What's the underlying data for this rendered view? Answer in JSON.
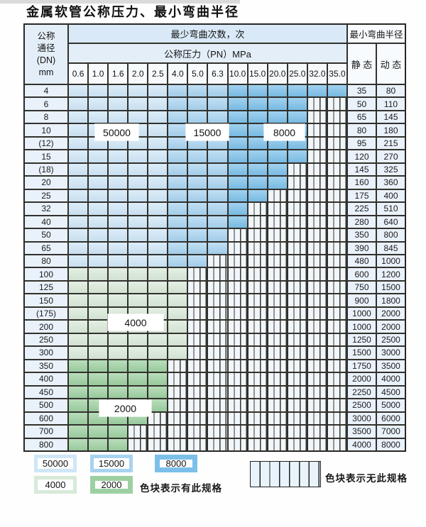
{
  "title": "金属软管公称压力、最小弯曲半径",
  "table": {
    "corner_header": [
      "公称",
      "通径",
      "(DN)",
      "mm"
    ],
    "cycles_header": "最少弯曲次数，次",
    "pressure_header": "公称压力（PN）MPa",
    "radius_header": "最小弯曲半径",
    "static_label": "静 态",
    "dynamic_label": "动 态",
    "pressure_columns": [
      "0.6",
      "1.0",
      "1.6",
      "2.0",
      "2.5",
      "4.0",
      "5.0",
      "6.3",
      "10.0",
      "15.0",
      "20.0",
      "25.0",
      "32.0",
      "35.0"
    ],
    "rows": [
      {
        "dn": "4",
        "spec_through_pn": "35.0",
        "band": "blue",
        "static": "35",
        "dynamic": "80"
      },
      {
        "dn": "6",
        "spec_through_pn": "25.0",
        "band": "blue",
        "static": "50",
        "dynamic": "110"
      },
      {
        "dn": "8",
        "spec_through_pn": "25.0",
        "band": "blue",
        "static": "65",
        "dynamic": "145"
      },
      {
        "dn": "10",
        "spec_through_pn": "25.0",
        "band": "blue",
        "static": "80",
        "dynamic": "180"
      },
      {
        "dn": "(12)",
        "spec_through_pn": "25.0",
        "band": "blue",
        "static": "95",
        "dynamic": "215"
      },
      {
        "dn": "15",
        "spec_through_pn": "25.0",
        "band": "blue",
        "static": "120",
        "dynamic": "270"
      },
      {
        "dn": "(18)",
        "spec_through_pn": "20.0",
        "band": "blue",
        "static": "145",
        "dynamic": "325"
      },
      {
        "dn": "20",
        "spec_through_pn": "20.0",
        "band": "blue",
        "static": "160",
        "dynamic": "360"
      },
      {
        "dn": "25",
        "spec_through_pn": "15.0",
        "band": "blue",
        "static": "175",
        "dynamic": "400"
      },
      {
        "dn": "32",
        "spec_through_pn": "10.0",
        "band": "blue",
        "static": "225",
        "dynamic": "510"
      },
      {
        "dn": "40",
        "spec_through_pn": "10.0",
        "band": "blue",
        "static": "280",
        "dynamic": "640"
      },
      {
        "dn": "50",
        "spec_through_pn": "6.3",
        "band": "blue",
        "static": "350",
        "dynamic": "800"
      },
      {
        "dn": "65",
        "spec_through_pn": "6.3",
        "band": "blue",
        "static": "390",
        "dynamic": "845"
      },
      {
        "dn": "80",
        "spec_through_pn": "5.0",
        "band": "blue",
        "static": "480",
        "dynamic": "1000"
      },
      {
        "dn": "100",
        "spec_through_pn": "4.0",
        "band": "green-4000",
        "static": "600",
        "dynamic": "1200"
      },
      {
        "dn": "125",
        "spec_through_pn": "4.0",
        "band": "green-4000",
        "static": "750",
        "dynamic": "1500"
      },
      {
        "dn": "150",
        "spec_through_pn": "4.0",
        "band": "green-4000",
        "static": "900",
        "dynamic": "1800"
      },
      {
        "dn": "(175)",
        "spec_through_pn": "4.0",
        "band": "green-4000",
        "static": "1000",
        "dynamic": "2000"
      },
      {
        "dn": "200",
        "spec_through_pn": "4.0",
        "band": "green-4000",
        "static": "1000",
        "dynamic": "2000"
      },
      {
        "dn": "250",
        "spec_through_pn": "4.0",
        "band": "green-4000",
        "static": "1250",
        "dynamic": "2500"
      },
      {
        "dn": "300",
        "spec_through_pn": "4.0",
        "band": "green-4000",
        "static": "1500",
        "dynamic": "3000"
      },
      {
        "dn": "350",
        "spec_through_pn": "2.5",
        "band": "green-2000",
        "static": "1750",
        "dynamic": "3500"
      },
      {
        "dn": "400",
        "spec_through_pn": "2.5",
        "band": "green-2000",
        "static": "2000",
        "dynamic": "4000"
      },
      {
        "dn": "450",
        "spec_through_pn": "2.5",
        "band": "green-2000",
        "static": "2250",
        "dynamic": "4500"
      },
      {
        "dn": "500",
        "spec_through_pn": "2.5",
        "band": "green-2000",
        "static": "2500",
        "dynamic": "5000"
      },
      {
        "dn": "600",
        "spec_through_pn": "2.0",
        "band": "green-2000",
        "static": "3000",
        "dynamic": "6000"
      },
      {
        "dn": "700",
        "spec_through_pn": "1.6",
        "band": "green-2000",
        "static": "3500",
        "dynamic": "7000"
      },
      {
        "dn": "800",
        "spec_through_pn": "1.6",
        "band": "green-2000",
        "static": "4000",
        "dynamic": "8000"
      }
    ],
    "blue_band_by_pn": {
      "50000": [
        "0.6",
        "1.0",
        "1.6",
        "2.0",
        "2.5"
      ],
      "15000": [
        "4.0",
        "5.0",
        "6.3"
      ],
      "8000": [
        "10.0",
        "15.0",
        "20.0",
        "25.0",
        "32.0",
        "35.0"
      ]
    }
  },
  "colors": {
    "c50000": "#cfe6f7",
    "c15000": "#a8d3f0",
    "c8000": "#7cc0e9",
    "c4000": "#d8e9d8",
    "c2000": "#9dd0a1",
    "nospec_bg": "#f1f6fb",
    "grid_line": "#32312d"
  },
  "overlay_labels": [
    {
      "text": "50000"
    },
    {
      "text": "15000"
    },
    {
      "text": "8000"
    },
    {
      "text": "4000"
    },
    {
      "text": "2000"
    }
  ],
  "legend": {
    "items": [
      {
        "label": "50000",
        "color": "#cfe6f7"
      },
      {
        "label": "15000",
        "color": "#a8d3f0"
      },
      {
        "label": "8000",
        "color": "#7cc0e9"
      },
      {
        "label": "4000",
        "color": "#d8e9d8"
      },
      {
        "label": "2000",
        "color": "#9dd0a1"
      }
    ],
    "has_spec_label": "色块表示有此规格",
    "no_spec_label": "色块表示无此规格"
  }
}
